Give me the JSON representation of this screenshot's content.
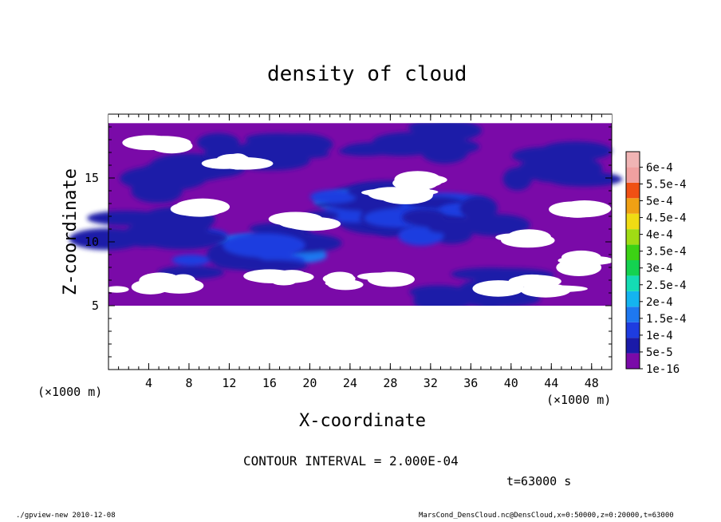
{
  "chart_data": {
    "type": "heatmap",
    "title": "density of cloud",
    "xlabel": "X-coordinate",
    "ylabel": "Z-coordinate",
    "x_unit": "(×1000 m)",
    "y_unit": "(×1000 m)",
    "xlim": [
      0,
      50
    ],
    "ylim": [
      0,
      20
    ],
    "x_ticks": [
      4,
      8,
      12,
      16,
      20,
      24,
      28,
      32,
      36,
      40,
      44,
      48
    ],
    "y_ticks": [
      5,
      10,
      15
    ],
    "contour_interval": "CONTOUR INTERVAL = 2.000E-04",
    "time_label": "t=63000 s",
    "colorbar": {
      "labels": [
        "1e-16",
        "5e-5",
        "1e-4",
        "1.5e-4",
        "2e-4",
        "2.5e-4",
        "3e-4",
        "3.5e-4",
        "4e-4",
        "4.5e-4",
        "5e-4",
        "5.5e-4",
        "6e-4"
      ],
      "levels": [
        1e-16,
        5e-05,
        0.0001,
        0.00015,
        0.0002,
        0.00025,
        0.0003,
        0.00035,
        0.0004,
        0.00045,
        0.0005,
        0.00055,
        0.0006
      ],
      "colors": [
        "#7a0aa8",
        "#1a1aa8",
        "#1e3ce0",
        "#1e78f0",
        "#14b4f0",
        "#14dcb4",
        "#14d250",
        "#3cd214",
        "#a0dc14",
        "#f0dc14",
        "#f0a014",
        "#f05014",
        "#f0a0a0",
        "#f0b4b4"
      ]
    },
    "clouds": [
      {
        "x": 14,
        "z": 9.5,
        "value": 0.00014
      },
      {
        "x": 15.5,
        "z": 10.0,
        "value": 0.00016
      },
      {
        "x": 12,
        "z": 8.8,
        "value": 0.00011
      },
      {
        "x": 28,
        "z": 12.5,
        "value": 0.00015
      },
      {
        "x": 30,
        "z": 12.0,
        "value": 0.00013
      },
      {
        "x": 25,
        "z": 13.0,
        "value": 0.00011
      },
      {
        "x": 34,
        "z": 11.5,
        "value": 0.0001
      },
      {
        "x": 6,
        "z": 15.0,
        "value": 6e-05
      },
      {
        "x": 30,
        "z": 18.0,
        "value": 6e-05
      },
      {
        "x": 15,
        "z": 17.5,
        "value": 5e-05
      },
      {
        "x": 36,
        "z": 6.5,
        "value": 6e-05
      },
      {
        "x": 44,
        "z": 16.0,
        "value": 5e-05
      },
      {
        "x": 4,
        "z": 11.0,
        "value": 5e-05
      }
    ]
  },
  "footer": {
    "left": "./gpview-new  2010-12-08",
    "right": "MarsCond_DensCloud.nc@DensCloud,x=0:50000,z=0:20000,t=63000"
  }
}
